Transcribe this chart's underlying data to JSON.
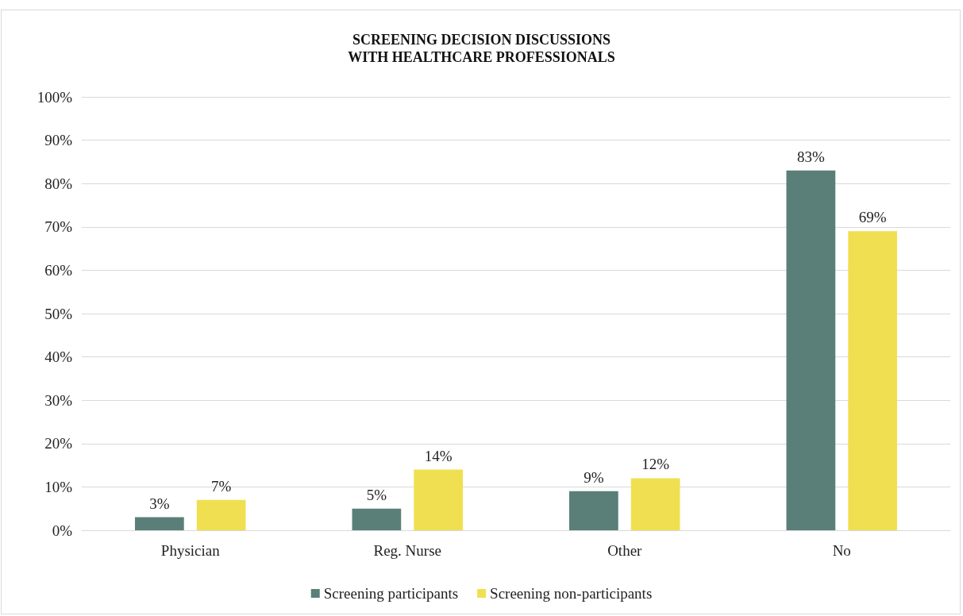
{
  "chart_data": {
    "type": "bar",
    "title": "SCREENING DECISION DISCUSSIONS\nWITH HEALTHCARE PROFESSIONALS",
    "categories": [
      "Physician",
      "Reg. Nurse",
      "Other",
      "No"
    ],
    "series": [
      {
        "name": "Screening participants",
        "color": "#5a7f79",
        "values": [
          3,
          5,
          9,
          83
        ],
        "value_labels": [
          "3%",
          "5%",
          "9%",
          "83%"
        ]
      },
      {
        "name": "Screening non-participants",
        "color": "#f0df50",
        "values": [
          7,
          14,
          12,
          69
        ],
        "value_labels": [
          "7%",
          "14%",
          "12%",
          "69%"
        ]
      }
    ],
    "ylim": [
      0,
      100
    ],
    "yticks": [
      {
        "value": 0,
        "label": "0%"
      },
      {
        "value": 10,
        "label": "10%"
      },
      {
        "value": 20,
        "label": "20%"
      },
      {
        "value": 30,
        "label": "30%"
      },
      {
        "value": 40,
        "label": "40%"
      },
      {
        "value": 50,
        "label": "50%"
      },
      {
        "value": 60,
        "label": "60%"
      },
      {
        "value": 70,
        "label": "70%"
      },
      {
        "value": 80,
        "label": "80%"
      },
      {
        "value": 90,
        "label": "90%"
      },
      {
        "value": 100,
        "label": "100%"
      }
    ],
    "grid": "y",
    "legend": "bottom"
  }
}
